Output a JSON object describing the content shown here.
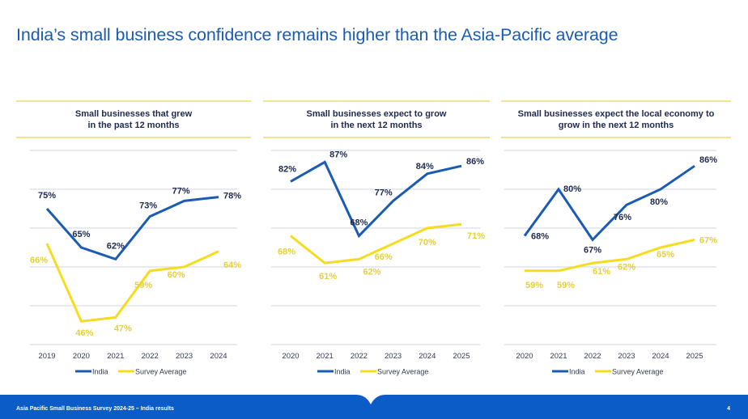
{
  "page": {
    "title": "India’s small business confidence remains higher than the Asia-Pacific average"
  },
  "colors": {
    "india": "#1a5bb5",
    "survey": "#f5dc1e",
    "survey_label": "#e6cf3a",
    "india_label": "#1e2a4e",
    "grid": "#d9dcef",
    "footer": "#0b5cc7",
    "header_rule": "#f3e38a"
  },
  "footer": {
    "text": "Asia Pacific Small Business Survey 2024-25 – India results",
    "page_number": "4"
  },
  "chart_data": [
    {
      "type": "line",
      "title": "Small businesses that grew\nin the past 12 months",
      "x": [
        "2019",
        "2020",
        "2021",
        "2022",
        "2023",
        "2024"
      ],
      "ylim": [
        40,
        90
      ],
      "grid": true,
      "legend": "bottom",
      "series": [
        {
          "name": "India",
          "values": [
            75,
            65,
            62,
            73,
            77,
            78
          ],
          "labels": [
            "75%",
            "65%",
            "62%",
            "73%",
            "77%",
            "78%"
          ]
        },
        {
          "name": "Survey Average",
          "values": [
            66,
            46,
            47,
            59,
            60,
            64
          ],
          "labels": [
            "66%",
            "46%",
            "47%",
            "59%",
            "60%",
            "64%"
          ]
        }
      ]
    },
    {
      "type": "line",
      "title": "Small businesses expect to grow\nin the next 12 months",
      "x": [
        "2020",
        "2021",
        "2022",
        "2023",
        "2024",
        "2025"
      ],
      "ylim": [
        40,
        90
      ],
      "grid": true,
      "legend": "bottom",
      "series": [
        {
          "name": "India",
          "values": [
            82,
            87,
            68,
            77,
            84,
            86
          ],
          "labels": [
            "82%",
            "87%",
            "68%",
            "77%",
            "84%",
            "86%"
          ]
        },
        {
          "name": "Survey Average",
          "values": [
            68,
            61,
            62,
            66,
            70,
            71
          ],
          "labels": [
            "68%",
            "61%",
            "62%",
            "66%",
            "70%",
            "71%"
          ]
        }
      ]
    },
    {
      "type": "line",
      "title": "Small businesses expect the local economy to\ngrow in the next 12 months",
      "x": [
        "2020",
        "2021",
        "2022",
        "2023",
        "2024",
        "2025"
      ],
      "ylim": [
        40,
        90
      ],
      "grid": true,
      "legend": "bottom",
      "series": [
        {
          "name": "India",
          "values": [
            68,
            80,
            67,
            76,
            80,
            86
          ],
          "labels": [
            "68%",
            "80%",
            "67%",
            "76%",
            "80%",
            "86%"
          ]
        },
        {
          "name": "Survey Average",
          "values": [
            59,
            59,
            61,
            62,
            65,
            67
          ],
          "labels": [
            "59%",
            "59%",
            "61%",
            "62%",
            "65%",
            "67%"
          ]
        }
      ]
    }
  ]
}
